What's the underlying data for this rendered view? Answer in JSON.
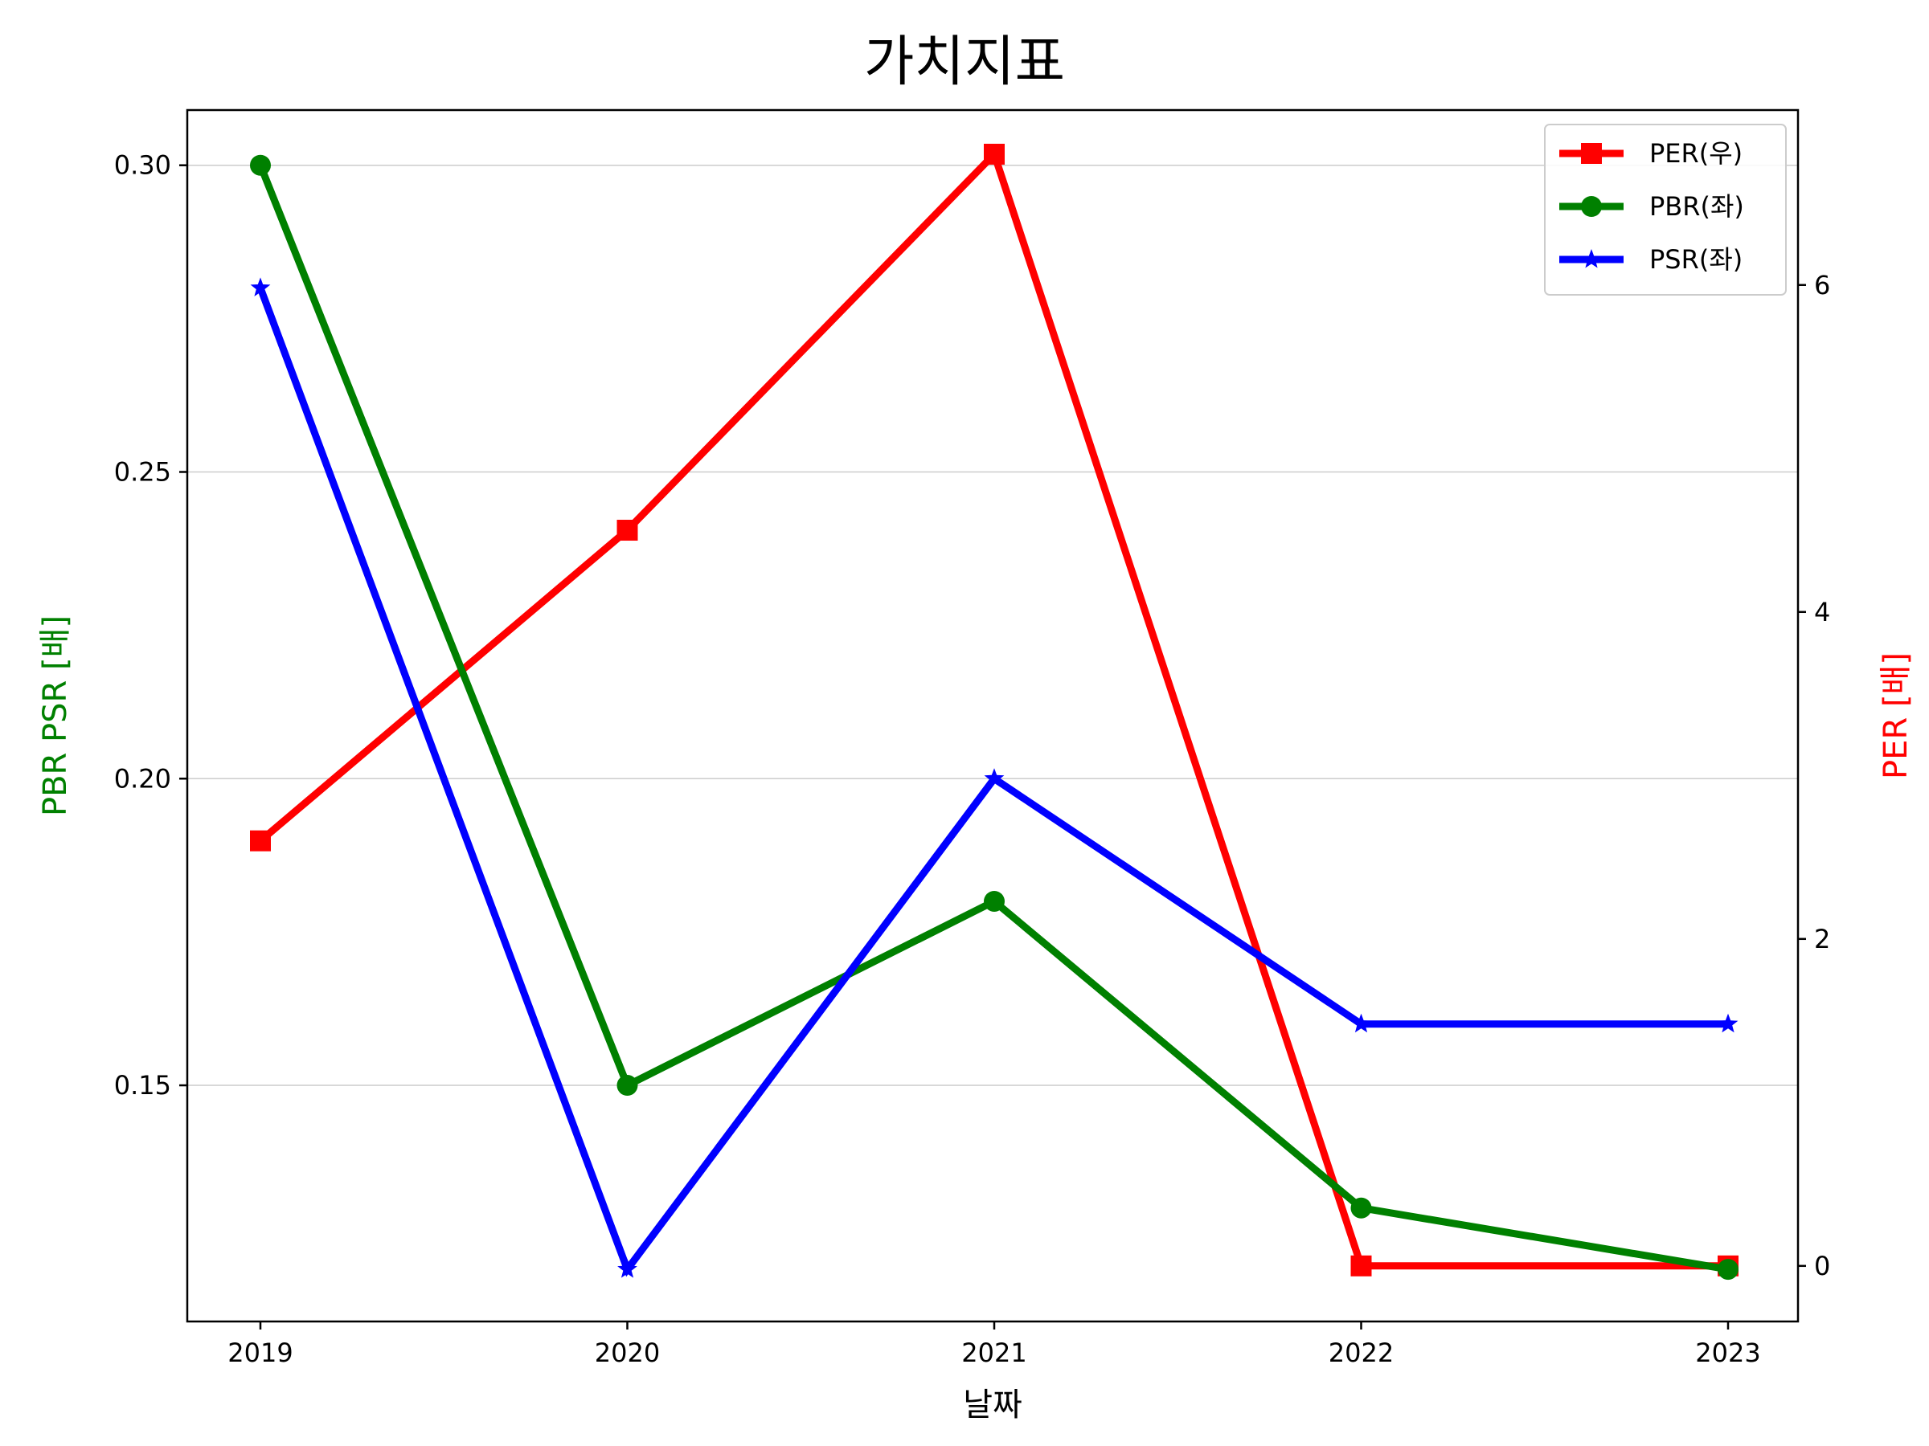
{
  "chart_data": {
    "type": "line",
    "title": "가치지표",
    "xlabel": "날짜",
    "ylabel_left": "PBR PSR [배]",
    "ylabel_right": "PER [배]",
    "ylabel_left_color": "#008000",
    "ylabel_right_color": "#ff0000",
    "categories": [
      "2019",
      "2020",
      "2021",
      "2022",
      "2023"
    ],
    "left_axis": {
      "ylim": [
        0.1115,
        0.309
      ],
      "ticks": [
        0.15,
        0.2,
        0.25,
        0.3
      ],
      "tick_labels": [
        "0.15",
        "0.20",
        "0.25",
        "0.30"
      ]
    },
    "right_axis": {
      "ylim": [
        -0.34,
        7.07
      ],
      "ticks": [
        0,
        2,
        4,
        6
      ],
      "tick_labels": [
        "0",
        "2",
        "4",
        "6"
      ]
    },
    "grid": true,
    "legend_position": "top-right",
    "series": [
      {
        "name": "PER(우)",
        "axis": "right",
        "color": "#ff0000",
        "marker": "square",
        "values": [
          2.6,
          4.5,
          6.8,
          0.0,
          0.0
        ]
      },
      {
        "name": "PBR(좌)",
        "axis": "left",
        "color": "#008000",
        "marker": "circle",
        "values": [
          0.3,
          0.15,
          0.18,
          0.13,
          0.12
        ]
      },
      {
        "name": "PSR(좌)",
        "axis": "left",
        "color": "#0000ff",
        "marker": "star",
        "values": [
          0.28,
          0.12,
          0.2,
          0.16,
          0.16
        ]
      }
    ]
  }
}
